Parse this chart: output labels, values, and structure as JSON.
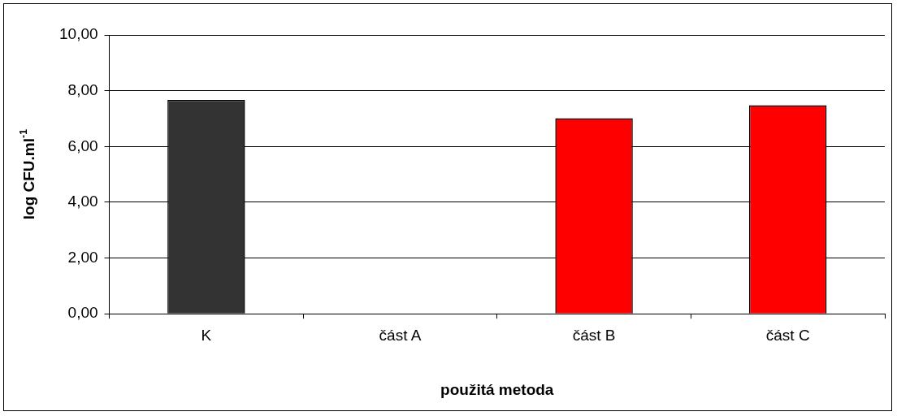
{
  "chart_data": {
    "type": "bar",
    "xlabel": "použitá metoda",
    "ylabel": "log CFU.ml$^{-1}$",
    "categories": [
      "K",
      "část A",
      "část B",
      "část C"
    ],
    "values": [
      7.67,
      0,
      7.01,
      7.48
    ],
    "colors": [
      "#333333",
      "#ff0000",
      "#ff0000",
      "#ff0000"
    ],
    "ylim": [
      0,
      10
    ],
    "yticks": [
      {
        "value": 0,
        "label": "0,00"
      },
      {
        "value": 2,
        "label": "2,00"
      },
      {
        "value": 4,
        "label": "4,00"
      },
      {
        "value": 6,
        "label": "6,00"
      },
      {
        "value": 8,
        "label": "8,00"
      },
      {
        "value": 10,
        "label": "10,00"
      }
    ],
    "grid": "y",
    "legend": false
  }
}
